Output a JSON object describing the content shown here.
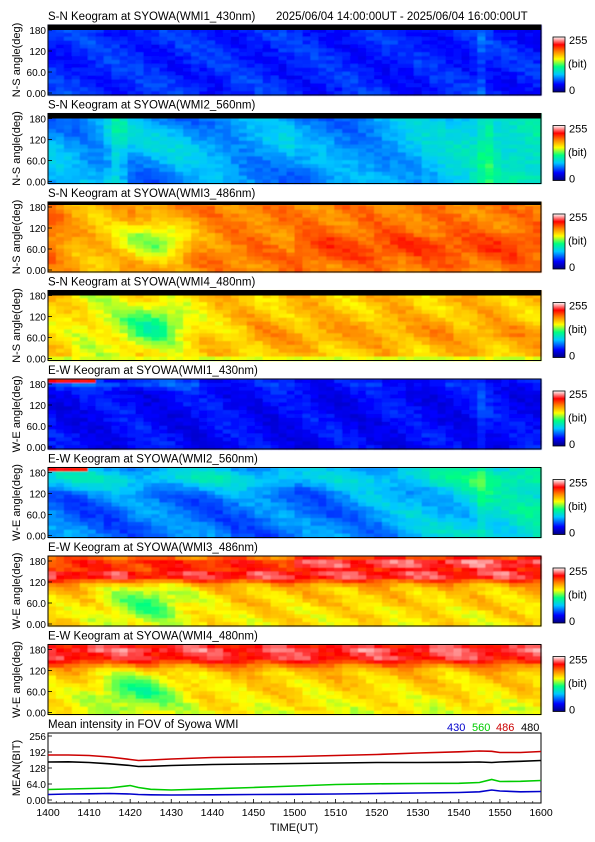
{
  "header": {
    "time_range": "2025/06/04 14:00:00UT - 2025/06/04 16:00:00UT"
  },
  "colorbar": {
    "max_label": "255",
    "unit_label": "(bit)",
    "min_label": "0",
    "colors": [
      "#00007f",
      "#0000ff",
      "#00c8ff",
      "#00ff80",
      "#ffff00",
      "#ff7f00",
      "#ff0000",
      "#ffffff"
    ]
  },
  "panels": [
    {
      "title": "S-N Keogram at SYOWA(WMI1_430nm)",
      "ylabel": "N-S angle(deg)",
      "ytick_labels": [
        "180",
        "120",
        "60.0",
        "0.00"
      ],
      "dominant_color": "blue"
    },
    {
      "title": "S-N Keogram at SYOWA(WMI2_560nm)",
      "ylabel": "N-S angle(deg)",
      "ytick_labels": [
        "180",
        "120",
        "60.0",
        "0.00"
      ],
      "dominant_color": "blue-green"
    },
    {
      "title": "S-N Keogram at SYOWA(WMI3_486nm)",
      "ylabel": "N-S angle(deg)",
      "ytick_labels": [
        "180",
        "120",
        "60.0",
        "0.00"
      ],
      "dominant_color": "orange"
    },
    {
      "title": "S-N Keogram at SYOWA(WMI4_480nm)",
      "ylabel": "N-S angle(deg)",
      "ytick_labels": [
        "180",
        "120",
        "60.0",
        "0.00"
      ],
      "dominant_color": "yellow-orange"
    },
    {
      "title": "E-W Keogram at SYOWA(WMI1_430nm)",
      "ylabel": "W-E angle(deg)",
      "ytick_labels": [
        "180",
        "120",
        "60.0",
        "0.00"
      ],
      "dominant_color": "blue"
    },
    {
      "title": "E-W Keogram at SYOWA(WMI2_560nm)",
      "ylabel": "W-E angle(deg)",
      "ytick_labels": [
        "180",
        "120",
        "60.0",
        "0.00"
      ],
      "dominant_color": "blue-green"
    },
    {
      "title": "E-W Keogram at SYOWA(WMI3_486nm)",
      "ylabel": "W-E angle(deg)",
      "ytick_labels": [
        "180",
        "120",
        "60.0",
        "0.00"
      ],
      "dominant_color": "red-white"
    },
    {
      "title": "E-W Keogram at SYOWA(WMI4_480nm)",
      "ylabel": "W-E angle(deg)",
      "ytick_labels": [
        "180",
        "120",
        "60.0",
        "0.00"
      ],
      "dominant_color": "red-white"
    }
  ],
  "chart_data": {
    "type": "line",
    "title": "Mean intensity in FOV of Syowa WMI",
    "xlabel": "TIME(UT)",
    "ylabel": "MEAN(BIT)",
    "x_tick_labels": [
      "1400",
      "1410",
      "1420",
      "1430",
      "1440",
      "1450",
      "1500",
      "1510",
      "1520",
      "1530",
      "1540",
      "1550",
      "1600"
    ],
    "y_tick_labels": [
      "256",
      "192",
      "128",
      "64.0",
      "0.00"
    ],
    "ylim": [
      0,
      256
    ],
    "x_minutes": [
      0,
      5,
      10,
      15,
      20,
      22,
      25,
      30,
      40,
      50,
      60,
      70,
      80,
      90,
      100,
      105,
      108,
      110,
      115,
      120
    ],
    "series": [
      {
        "name": "430",
        "color": "#0000cc",
        "values": [
          22,
          24,
          25,
          26,
          24,
          22,
          21,
          20,
          21,
          22,
          23,
          24,
          26,
          28,
          30,
          33,
          40,
          36,
          33,
          34
        ]
      },
      {
        "name": "560",
        "color": "#00cc00",
        "values": [
          42,
          44,
          46,
          48,
          58,
          50,
          43,
          40,
          45,
          50,
          56,
          62,
          65,
          66,
          67,
          70,
          82,
          74,
          75,
          78
        ]
      },
      {
        "name": "486",
        "color": "#cc0000",
        "values": [
          180,
          180,
          178,
          172,
          162,
          158,
          160,
          164,
          170,
          172,
          174,
          178,
          182,
          188,
          193,
          196,
          195,
          190,
          190,
          194
        ]
      },
      {
        "name": "480",
        "color": "#000000",
        "values": [
          152,
          153,
          150,
          145,
          138,
          134,
          135,
          138,
          142,
          144,
          146,
          148,
          150,
          150,
          151,
          152,
          150,
          152,
          155,
          158
        ]
      }
    ]
  }
}
